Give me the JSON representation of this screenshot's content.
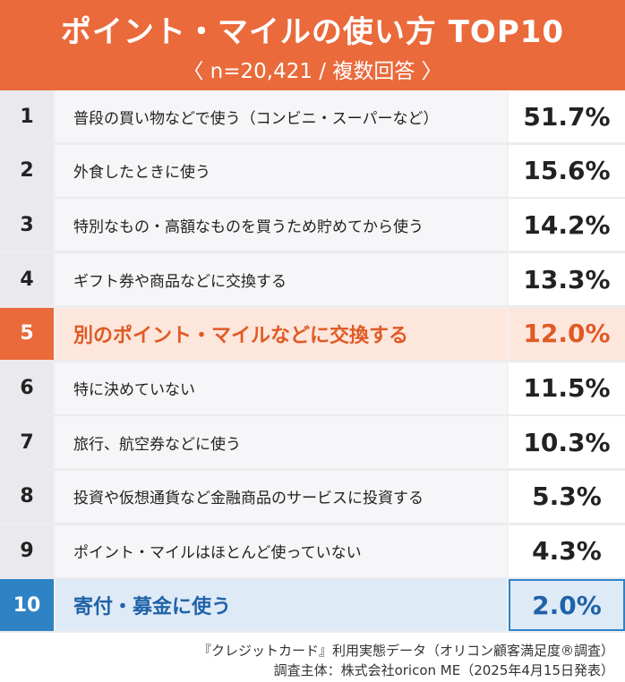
{
  "header": {
    "title": "ポイント・マイルの使い方 TOP10",
    "subtitle": "〈 n=20,421 / 複数回答 〉"
  },
  "chart_data": {
    "type": "table",
    "title": "ポイント・マイルの使い方 TOP10",
    "rows": [
      {
        "rank": "1",
        "label": "普段の買い物などで使う（コンビニ・スーパーなど）",
        "value": "51.7%"
      },
      {
        "rank": "2",
        "label": "外食したときに使う",
        "value": "15.6%"
      },
      {
        "rank": "3",
        "label": "特別なもの・高額なものを買うため貯めてから使う",
        "value": "14.2%"
      },
      {
        "rank": "4",
        "label": "ギフト券や商品などに交換する",
        "value": "13.3%"
      },
      {
        "rank": "5",
        "label": "別のポイント・マイルなどに交換する",
        "value": "12.0%"
      },
      {
        "rank": "6",
        "label": "特に決めていない",
        "value": "11.5%"
      },
      {
        "rank": "7",
        "label": "旅行、航空券などに使う",
        "value": "10.3%"
      },
      {
        "rank": "8",
        "label": "投資や仮想通貨など金融商品のサービスに投資する",
        "value": "5.3%"
      },
      {
        "rank": "9",
        "label": "ポイント・マイルはほとんど使っていない",
        "value": "4.3%"
      },
      {
        "rank": "10",
        "label": "寄付・募金に使う",
        "value": "2.0%"
      }
    ],
    "highlights": {
      "orange": "5",
      "blue": "10"
    }
  },
  "colors": {
    "header_bg": "#ea6a3b",
    "highlight_orange": "#e05a25",
    "highlight_blue": "#2f83c5"
  },
  "footer": {
    "line1": "『クレジットカード』利用実態データ（オリコン顧客満足度®調査）",
    "line2": "調査主体：株式会社oricon ME（2025年4月15日発表）"
  }
}
